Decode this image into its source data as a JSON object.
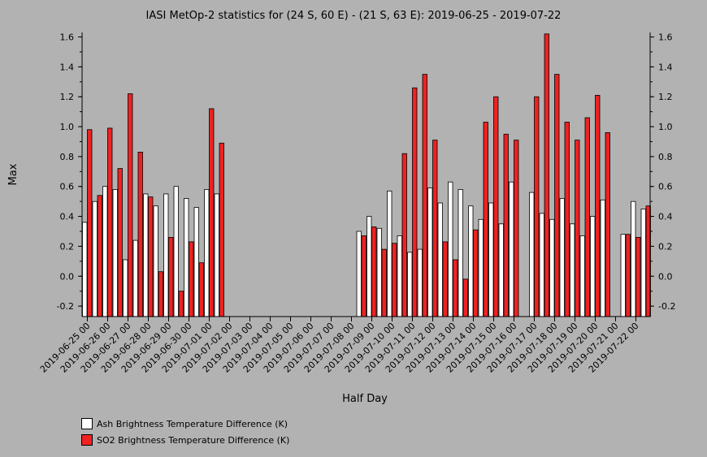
{
  "chart_data": {
    "type": "bar",
    "title": "IASI MetOp-2 statistics for (24 S, 60 E) - (21 S, 63 E): 2019-06-25 - 2019-07-22",
    "xlabel": "Half Day",
    "ylabel": "Max",
    "ylim": [
      -0.27,
      1.63
    ],
    "yticks": [
      "-0.2",
      "0.0",
      "0.2",
      "0.4",
      "0.6",
      "0.8",
      "1.0",
      "1.2",
      "1.4",
      "1.6"
    ],
    "categories": [
      "2019-06-25 00",
      "2019-06-25 12",
      "2019-06-26 00",
      "2019-06-26 12",
      "2019-06-27 00",
      "2019-06-27 12",
      "2019-06-28 00",
      "2019-06-28 12",
      "2019-06-29 00",
      "2019-06-29 12",
      "2019-06-30 00",
      "2019-06-30 12",
      "2019-07-01 00",
      "2019-07-01 12",
      "2019-07-02 00",
      "2019-07-02 12",
      "2019-07-03 00",
      "2019-07-03 12",
      "2019-07-04 00",
      "2019-07-04 12",
      "2019-07-05 00",
      "2019-07-05 12",
      "2019-07-06 00",
      "2019-07-06 12",
      "2019-07-07 00",
      "2019-07-07 12",
      "2019-07-08 00",
      "2019-07-08 12",
      "2019-07-09 00",
      "2019-07-09 12",
      "2019-07-10 00",
      "2019-07-10 12",
      "2019-07-11 00",
      "2019-07-11 12",
      "2019-07-12 00",
      "2019-07-12 12",
      "2019-07-13 00",
      "2019-07-13 12",
      "2019-07-14 00",
      "2019-07-14 12",
      "2019-07-15 00",
      "2019-07-15 12",
      "2019-07-16 00",
      "2019-07-16 12",
      "2019-07-17 00",
      "2019-07-17 12",
      "2019-07-18 00",
      "2019-07-18 12",
      "2019-07-19 00",
      "2019-07-19 12",
      "2019-07-20 00",
      "2019-07-20 12",
      "2019-07-21 00",
      "2019-07-21 12",
      "2019-07-22 00",
      "2019-07-22 12"
    ],
    "tick_labels": [
      "2019-06-25 00",
      "2019-06-26 00",
      "2019-06-27 00",
      "2019-06-28 00",
      "2019-06-29 00",
      "2019-06-30 00",
      "2019-07-01 00",
      "2019-07-02 00",
      "2019-07-03 00",
      "2019-07-04 00",
      "2019-07-05 00",
      "2019-07-06 00",
      "2019-07-07 00",
      "2019-07-08 00",
      "2019-07-09 00",
      "2019-07-10 00",
      "2019-07-11 00",
      "2019-07-12 00",
      "2019-07-13 00",
      "2019-07-14 00",
      "2019-07-15 00",
      "2019-07-16 00",
      "2019-07-17 00",
      "2019-07-18 00",
      "2019-07-19 00",
      "2019-07-20 00",
      "2019-07-21 00",
      "2019-07-22 00"
    ],
    "series": [
      {
        "name": "Ash Brightness Temperature Difference (K)",
        "color": "#ffffff",
        "values": [
          0.36,
          0.5,
          0.6,
          0.58,
          0.11,
          0.24,
          0.55,
          0.47,
          0.55,
          0.6,
          0.52,
          0.46,
          0.58,
          0.55,
          null,
          null,
          null,
          null,
          null,
          null,
          null,
          null,
          null,
          null,
          null,
          null,
          null,
          0.3,
          0.4,
          0.32,
          0.57,
          0.27,
          0.16,
          0.18,
          0.59,
          0.49,
          0.63,
          0.58,
          0.47,
          0.38,
          0.49,
          0.35,
          0.63,
          null,
          0.56,
          0.42,
          0.38,
          0.52,
          0.35,
          0.27,
          0.4,
          0.51,
          null,
          0.28,
          0.5,
          0.45
        ]
      },
      {
        "name": "SO2 Brightness Temperature Difference (K)",
        "color": "#ee2222",
        "values": [
          0.98,
          0.54,
          0.99,
          0.72,
          1.22,
          0.83,
          0.53,
          0.03,
          0.26,
          -0.1,
          0.23,
          0.09,
          1.12,
          0.89,
          null,
          null,
          null,
          null,
          null,
          null,
          null,
          null,
          null,
          null,
          null,
          null,
          null,
          0.27,
          0.33,
          0.18,
          0.22,
          0.82,
          1.26,
          1.35,
          0.91,
          0.23,
          0.11,
          -0.02,
          0.31,
          1.03,
          1.2,
          0.95,
          0.91,
          null,
          1.2,
          1.62,
          1.35,
          1.03,
          0.91,
          1.06,
          1.21,
          0.96,
          null,
          0.28,
          0.26,
          0.47
        ]
      }
    ],
    "grid": false,
    "legend_placement": "bottom-left"
  }
}
